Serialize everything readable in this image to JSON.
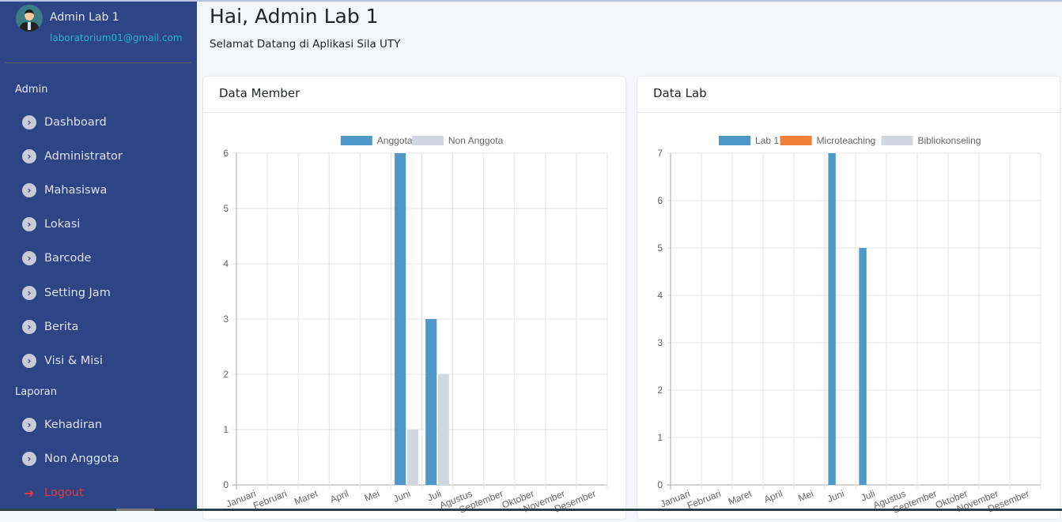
{
  "user": {
    "name": "Admin Lab 1",
    "email": "laboratorium01@gmail.com"
  },
  "sidebar": {
    "sections": [
      {
        "label": "Admin",
        "items": [
          {
            "label": "Dashboard"
          },
          {
            "label": "Administrator"
          },
          {
            "label": "Mahasiswa"
          },
          {
            "label": "Lokasi"
          },
          {
            "label": "Barcode"
          },
          {
            "label": "Setting Jam"
          },
          {
            "label": "Berita"
          },
          {
            "label": "Visi & Misi"
          }
        ]
      },
      {
        "label": "Laporan",
        "items": [
          {
            "label": "Kehadiran"
          },
          {
            "label": "Non Anggota"
          }
        ]
      }
    ],
    "logout": "Logout"
  },
  "header": {
    "title": "Hai, Admin Lab 1",
    "subtitle": "Selamat Datang di Aplikasi Sila UTY"
  },
  "cards": {
    "member": "Data Member",
    "lab": "Data Lab"
  },
  "chart_data": [
    {
      "type": "bar",
      "title": "Data Member",
      "categories": [
        "Januari",
        "Februari",
        "Maret",
        "April",
        "Mei",
        "Juni",
        "Juli",
        "Agustus",
        "September",
        "Oktober",
        "November",
        "Desember"
      ],
      "series": [
        {
          "name": "Anggota",
          "color": "#4e97c6",
          "values": [
            0,
            0,
            0,
            0,
            0,
            6,
            3,
            0,
            0,
            0,
            0,
            0
          ]
        },
        {
          "name": "Non Anggota",
          "color": "#d2d6de",
          "values": [
            0,
            0,
            0,
            0,
            0,
            1,
            2,
            0,
            0,
            0,
            0,
            0
          ]
        }
      ],
      "ylim": [
        0,
        6
      ],
      "yticks": [
        0,
        1,
        2,
        3,
        4,
        5,
        6
      ],
      "grid": true,
      "legend": "top"
    },
    {
      "type": "bar",
      "title": "Data Lab",
      "categories": [
        "Januari",
        "Februari",
        "Maret",
        "April",
        "Mei",
        "Juni",
        "Juli",
        "Agustus",
        "September",
        "Oktober",
        "November",
        "Desember"
      ],
      "series": [
        {
          "name": "Lab 1",
          "color": "#4e97c6",
          "values": [
            0,
            0,
            0,
            0,
            0,
            7,
            5,
            0,
            0,
            0,
            0,
            0
          ]
        },
        {
          "name": "Microteaching",
          "color": "#f07f3a",
          "values": [
            0,
            0,
            0,
            0,
            0,
            0,
            0,
            0,
            0,
            0,
            0,
            0
          ]
        },
        {
          "name": "Bibliokonseling",
          "color": "#d2d6de",
          "values": [
            0,
            0,
            0,
            0,
            0,
            0,
            0,
            0,
            0,
            0,
            0,
            0
          ]
        }
      ],
      "ylim": [
        0,
        7
      ],
      "yticks": [
        0,
        1,
        2,
        3,
        4,
        5,
        6,
        7
      ],
      "grid": true,
      "legend": "top"
    }
  ]
}
